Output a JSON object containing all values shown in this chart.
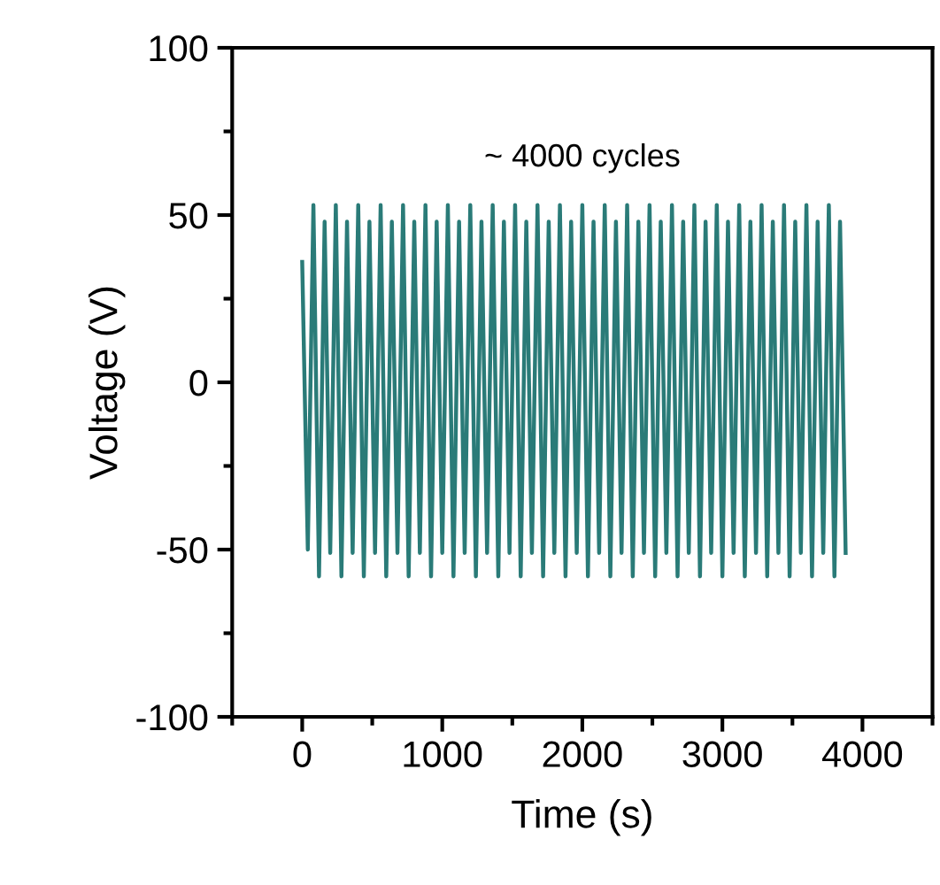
{
  "chart_data": {
    "type": "line",
    "xlabel": "Time (s)",
    "ylabel": "Voltage (V)",
    "annotations": [
      "~ 4000 cycles"
    ],
    "xlim": [
      -500,
      4500
    ],
    "xticks": [
      0,
      1000,
      2000,
      3000,
      4000
    ],
    "ylim": [
      -100,
      100
    ],
    "yticks": [
      -100,
      -50,
      0,
      50,
      100
    ],
    "grid": false,
    "legend": false,
    "marker": "none",
    "line_style": "solid",
    "series": [
      {
        "color": "#2a7b78",
        "x": [
          0,
          40,
          80,
          120,
          160,
          200,
          240,
          280,
          320,
          360,
          400,
          440,
          480,
          520,
          560,
          600,
          640,
          680,
          720,
          760,
          800,
          840,
          880,
          920,
          960,
          1000,
          1040,
          1080,
          1120,
          1160,
          1200,
          1240,
          1280,
          1320,
          1360,
          1400,
          1440,
          1480,
          1520,
          1560,
          1600,
          1640,
          1680,
          1720,
          1760,
          1800,
          1840,
          1880,
          1920,
          1960,
          2000,
          2040,
          2080,
          2120,
          2160,
          2200,
          2240,
          2280,
          2320,
          2360,
          2400,
          2440,
          2480,
          2520,
          2560,
          2600,
          2640,
          2680,
          2720,
          2760,
          2800,
          2840,
          2880,
          2920,
          2960,
          3000,
          3040,
          3080,
          3120,
          3160,
          3200,
          3240,
          3280,
          3320,
          3360,
          3400,
          3440,
          3480,
          3520,
          3560,
          3600,
          3640,
          3680,
          3720,
          3760,
          3800,
          3840,
          3880
        ],
        "values": [
          36,
          -50,
          53,
          -58,
          48,
          -51,
          53,
          -58,
          48,
          -51,
          53,
          -58,
          48,
          -51,
          53,
          -58,
          48,
          -51,
          53,
          -58,
          48,
          -51,
          53,
          -58,
          48,
          -51,
          53,
          -58,
          48,
          -51,
          53,
          -58,
          48,
          -51,
          53,
          -58,
          48,
          -51,
          53,
          -58,
          48,
          -51,
          53,
          -58,
          48,
          -51,
          53,
          -58,
          48,
          -51,
          53,
          -58,
          48,
          -51,
          53,
          -58,
          48,
          -51,
          53,
          -58,
          48,
          -51,
          53,
          -58,
          48,
          -51,
          53,
          -58,
          48,
          -51,
          53,
          -58,
          48,
          -51,
          53,
          -58,
          48,
          -51,
          53,
          -58,
          48,
          -51,
          53,
          -58,
          48,
          -51,
          53,
          -58,
          48,
          -51,
          53,
          -58,
          48,
          -51,
          53,
          -58,
          48,
          -51
        ]
      }
    ]
  }
}
